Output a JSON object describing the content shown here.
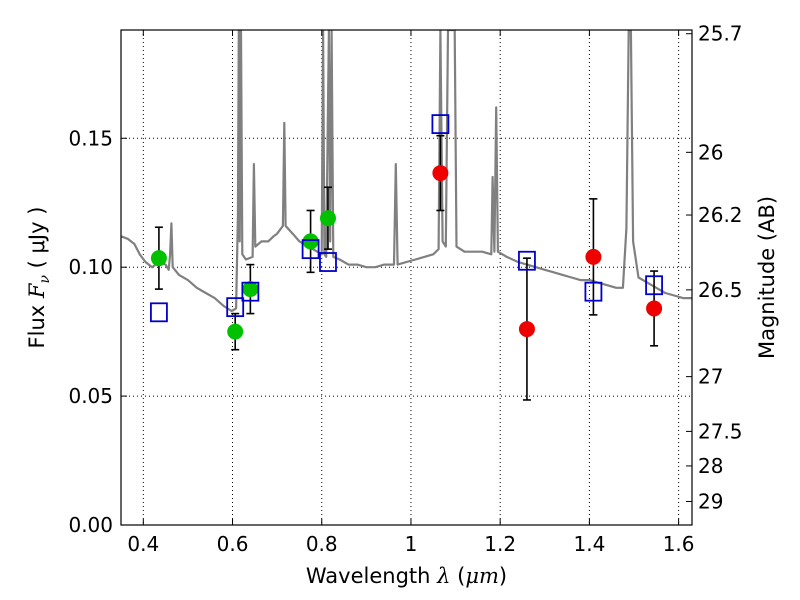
{
  "chart_data": {
    "type": "scatter",
    "xlabel": {
      "prefix": "Wavelength",
      "symbol": "λ",
      "unit_open": "(",
      "unit": "μm",
      "unit_close": ")"
    },
    "ylabel": {
      "prefix": "Flux",
      "symbol_base": "F",
      "symbol_sub": "ν",
      "unit_open": "(",
      "unit": "μJy",
      "unit_close": ")"
    },
    "ylabel_right": "Magnitude (AB)",
    "xlim": [
      0.35,
      1.63
    ],
    "ylim": [
      0.0,
      0.192
    ],
    "xticks": [
      0.4,
      0.6,
      0.8,
      1.0,
      1.2,
      1.4,
      1.6
    ],
    "xtick_labels": [
      "0.4",
      "0.6",
      "0.8",
      "1",
      "1.2",
      "1.4",
      "1.6"
    ],
    "yticks": [
      0.0,
      0.05,
      0.1,
      0.15
    ],
    "ytick_labels": [
      "0.00",
      "0.05",
      "0.10",
      "0.15"
    ],
    "right_ticks": [
      {
        "label": "25.7",
        "mag": 25.7
      },
      {
        "label": "26",
        "mag": 26
      },
      {
        "label": "26.2",
        "mag": 26.2
      },
      {
        "label": "26.5",
        "mag": 26.5
      },
      {
        "label": "27",
        "mag": 27
      },
      {
        "label": "27.5",
        "mag": 27.5
      },
      {
        "label": "28",
        "mag": 28
      },
      {
        "label": "29",
        "mag": 29
      }
    ],
    "grid": true,
    "colors": {
      "green": "#00c000",
      "red": "#ee0000",
      "model_box": "#0000cc",
      "spectrum": "#808080"
    },
    "series": [
      {
        "marker": "circle",
        "color": "green",
        "points": [
          {
            "x": 0.435,
            "y": 0.1035,
            "yerr": 0.012
          },
          {
            "x": 0.606,
            "y": 0.075,
            "yerr": 0.007
          },
          {
            "x": 0.64,
            "y": 0.0915,
            "yerr": 0.0095
          },
          {
            "x": 0.775,
            "y": 0.11,
            "yerr": 0.012
          },
          {
            "x": 0.814,
            "y": 0.119,
            "yerr": 0.012
          }
        ]
      },
      {
        "marker": "circle",
        "color": "red",
        "points": [
          {
            "x": 1.066,
            "y": 0.1365,
            "yerr": 0.0145
          },
          {
            "x": 1.26,
            "y": 0.076,
            "yerr": 0.0275
          },
          {
            "x": 1.409,
            "y": 0.104,
            "yerr": 0.0225
          },
          {
            "x": 1.545,
            "y": 0.084,
            "yerr": 0.0145
          }
        ]
      },
      {
        "marker": "square",
        "color": "model_box",
        "points": [
          {
            "x": 0.435,
            "y": 0.0825
          },
          {
            "x": 0.606,
            "y": 0.0845
          },
          {
            "x": 0.64,
            "y": 0.0905
          },
          {
            "x": 0.775,
            "y": 0.107
          },
          {
            "x": 0.814,
            "y": 0.102
          },
          {
            "x": 1.066,
            "y": 0.1555
          },
          {
            "x": 1.26,
            "y": 0.1025
          },
          {
            "x": 1.409,
            "y": 0.0905
          },
          {
            "x": 1.545,
            "y": 0.093
          }
        ]
      }
    ],
    "spectrum": [
      [
        0.35,
        0.112
      ],
      [
        0.365,
        0.111
      ],
      [
        0.38,
        0.109
      ],
      [
        0.392,
        0.105
      ],
      [
        0.405,
        0.102
      ],
      [
        0.42,
        0.1
      ],
      [
        0.435,
        0.102
      ],
      [
        0.45,
        0.101
      ],
      [
        0.457,
        0.099
      ],
      [
        0.46,
        0.105
      ],
      [
        0.463,
        0.117
      ],
      [
        0.466,
        0.1
      ],
      [
        0.48,
        0.097
      ],
      [
        0.5,
        0.095
      ],
      [
        0.52,
        0.092
      ],
      [
        0.54,
        0.09
      ],
      [
        0.56,
        0.088
      ],
      [
        0.58,
        0.085
      ],
      [
        0.598,
        0.083
      ],
      [
        0.608,
        0.084
      ],
      [
        0.612,
        0.12
      ],
      [
        0.614,
        0.192
      ],
      [
        0.616,
        0.11
      ],
      [
        0.619,
        0.192
      ],
      [
        0.622,
        0.105
      ],
      [
        0.63,
        0.103
      ],
      [
        0.645,
        0.104
      ],
      [
        0.648,
        0.14
      ],
      [
        0.651,
        0.108
      ],
      [
        0.665,
        0.11
      ],
      [
        0.68,
        0.11
      ],
      [
        0.692,
        0.112
      ],
      [
        0.7,
        0.113
      ],
      [
        0.713,
        0.116
      ],
      [
        0.716,
        0.156
      ],
      [
        0.719,
        0.116
      ],
      [
        0.735,
        0.113
      ],
      [
        0.75,
        0.11
      ],
      [
        0.77,
        0.108
      ],
      [
        0.79,
        0.106
      ],
      [
        0.8,
        0.105
      ],
      [
        0.803,
        0.192
      ],
      [
        0.806,
        0.105
      ],
      [
        0.81,
        0.104
      ],
      [
        0.816,
        0.192
      ],
      [
        0.819,
        0.11
      ],
      [
        0.822,
        0.192
      ],
      [
        0.826,
        0.104
      ],
      [
        0.84,
        0.103
      ],
      [
        0.86,
        0.101
      ],
      [
        0.88,
        0.101
      ],
      [
        0.9,
        0.1
      ],
      [
        0.92,
        0.1
      ],
      [
        0.94,
        0.101
      ],
      [
        0.962,
        0.101
      ],
      [
        0.966,
        0.14
      ],
      [
        0.97,
        0.101
      ],
      [
        0.99,
        0.102
      ],
      [
        1.01,
        0.103
      ],
      [
        1.03,
        0.104
      ],
      [
        1.05,
        0.105
      ],
      [
        1.062,
        0.107
      ],
      [
        1.066,
        0.192
      ],
      [
        1.071,
        0.11
      ],
      [
        1.078,
        0.108
      ],
      [
        1.083,
        0.192
      ],
      [
        1.098,
        0.192
      ],
      [
        1.102,
        0.108
      ],
      [
        1.12,
        0.106
      ],
      [
        1.14,
        0.106
      ],
      [
        1.16,
        0.106
      ],
      [
        1.18,
        0.105
      ],
      [
        1.183,
        0.135
      ],
      [
        1.187,
        0.106
      ],
      [
        1.191,
        0.162
      ],
      [
        1.195,
        0.106
      ],
      [
        1.215,
        0.104
      ],
      [
        1.24,
        0.102
      ],
      [
        1.26,
        0.101
      ],
      [
        1.28,
        0.1
      ],
      [
        1.3,
        0.099
      ],
      [
        1.32,
        0.098
      ],
      [
        1.34,
        0.097
      ],
      [
        1.36,
        0.096
      ],
      [
        1.38,
        0.095
      ],
      [
        1.4,
        0.095
      ],
      [
        1.42,
        0.094
      ],
      [
        1.44,
        0.093
      ],
      [
        1.46,
        0.092
      ],
      [
        1.475,
        0.092
      ],
      [
        1.483,
        0.115
      ],
      [
        1.488,
        0.192
      ],
      [
        1.493,
        0.192
      ],
      [
        1.498,
        0.11
      ],
      [
        1.51,
        0.096
      ],
      [
        1.53,
        0.094
      ],
      [
        1.55,
        0.092
      ],
      [
        1.57,
        0.09
      ],
      [
        1.59,
        0.089
      ],
      [
        1.61,
        0.088
      ],
      [
        1.63,
        0.088
      ]
    ]
  }
}
